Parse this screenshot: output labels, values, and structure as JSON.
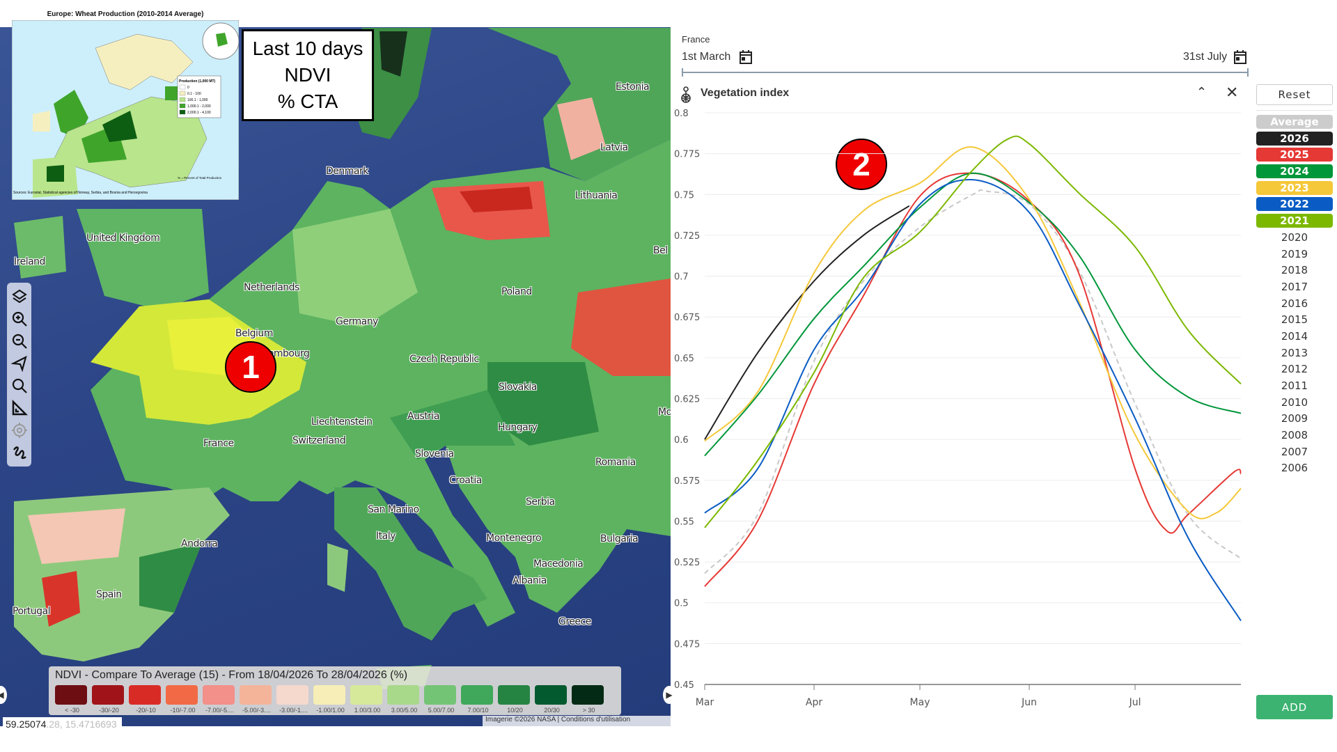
{
  "map": {
    "inset": {
      "title": "Europe: Wheat Production (2010-2014 Average)",
      "legend_title": "Production (1,000 MT)",
      "legend_items": [
        "0",
        "0.1 - 100",
        "100.1 - 1,000",
        "1,000.1 - 2,000",
        "2,000.1 - 4,100"
      ],
      "legend_colors": [
        "#ffffff",
        "#f5efc0",
        "#b9e58c",
        "#3fa52a",
        "#0d5e12"
      ],
      "source": "Sources: Eurostat, Statistical agencies of Norway, Serbia, and Bosnia and Herzegovina",
      "note": "% = Percent of Total Production"
    },
    "ndvi_box": {
      "line1": "Last 10 days",
      "line2": "NDVI",
      "line3": "% CTA"
    },
    "markers": {
      "m1": "1",
      "m2": "2"
    },
    "toolbar": [
      "layers-icon",
      "zoom-in-icon",
      "zoom-out-icon",
      "navigate-icon",
      "search-icon",
      "measure-icon",
      "locate-icon",
      "draw-icon"
    ],
    "country_labels": [
      "Estonia",
      "Latvia",
      "Lithuania",
      "Denmark",
      "United Kingdom",
      "Ireland",
      "Netherlands",
      "Poland",
      "Belgium",
      "Germany",
      "Luxembourg",
      "Czech Republic",
      "Slovakia",
      "France",
      "Austria",
      "Hungary",
      "Liechtenstein",
      "Switzerland",
      "Slovenia",
      "Romania",
      "Croatia",
      "Serbia",
      "San Marino",
      "Italy",
      "Montenegro",
      "Bulgaria",
      "Macedonia",
      "Albania",
      "Andorra",
      "Spain",
      "Portugal",
      "Greece",
      "Bel",
      "Mo"
    ],
    "legend": {
      "title": "NDVI - Compare To Average (15) - From 18/04/2026 To 28/04/2026 (%)",
      "items": [
        {
          "label": "< -30",
          "color": "#6d0e12"
        },
        {
          "label": "-30/-20",
          "color": "#a01419"
        },
        {
          "label": "-20/-10",
          "color": "#d92b26"
        },
        {
          "label": "-10/-7.00",
          "color": "#f26a45"
        },
        {
          "label": "-7.00/-5....",
          "color": "#f3908a"
        },
        {
          "label": "-5.00/-3....",
          "color": "#f4b49a"
        },
        {
          "label": "-3.00/-1....",
          "color": "#f5d9cd"
        },
        {
          "label": "-1.00/1.00",
          "color": "#f6eeb6"
        },
        {
          "label": "1.00/3.00",
          "color": "#d6e99b"
        },
        {
          "label": "3.00/5.00",
          "color": "#a8d98a"
        },
        {
          "label": "5.00/7.00",
          "color": "#74c476"
        },
        {
          "label": "7.00/10",
          "color": "#3fa85a"
        },
        {
          "label": "10/20",
          "color": "#268443"
        },
        {
          "label": "20/30",
          "color": "#045a2f"
        },
        {
          "label": "> 30",
          "color": "#022a14"
        }
      ]
    },
    "coordinate": "59.25074",
    "coordinate_ghost": ".28, 15.4716693",
    "attribution": "Imagerie ©2026 NASA",
    "terms": "Conditions d'utilisation"
  },
  "panel": {
    "region": "France",
    "start_date": "1st March",
    "end_date": "31st July",
    "chart_title": "Vegetation index",
    "reset_label": "Reset",
    "add_label": "ADD",
    "years": [
      {
        "label": "Average",
        "color": "#cccccc",
        "active": true
      },
      {
        "label": "2026",
        "color": "#222222",
        "active": true
      },
      {
        "label": "2025",
        "color": "#e53935",
        "active": true
      },
      {
        "label": "2024",
        "color": "#00963a",
        "active": true
      },
      {
        "label": "2023",
        "color": "#f5c83a",
        "active": true
      },
      {
        "label": "2022",
        "color": "#0a5cc4",
        "active": true
      },
      {
        "label": "2021",
        "color": "#7cb800",
        "active": true
      },
      {
        "label": "2020",
        "active": false
      },
      {
        "label": "2019",
        "active": false
      },
      {
        "label": "2018",
        "active": false
      },
      {
        "label": "2017",
        "active": false
      },
      {
        "label": "2016",
        "active": false
      },
      {
        "label": "2015",
        "active": false
      },
      {
        "label": "2014",
        "active": false
      },
      {
        "label": "2013",
        "active": false
      },
      {
        "label": "2012",
        "active": false
      },
      {
        "label": "2011",
        "active": false
      },
      {
        "label": "2010",
        "active": false
      },
      {
        "label": "2009",
        "active": false
      },
      {
        "label": "2008",
        "active": false
      },
      {
        "label": "2007",
        "active": false
      },
      {
        "label": "2006",
        "active": false
      }
    ],
    "add_color": "#3cb371"
  },
  "chart_data": {
    "type": "line",
    "title": "Vegetation index",
    "xlim": [
      "03-01",
      "07-31"
    ],
    "ylim": [
      0.45,
      0.8
    ],
    "yticks": [
      0.45,
      0.475,
      0.5,
      0.525,
      0.55,
      0.575,
      0.6,
      0.625,
      0.65,
      0.675,
      0.7,
      0.725,
      0.75,
      0.775,
      0.8
    ],
    "xticks": [
      {
        "date": "03-01",
        "label": "Mar"
      },
      {
        "date": "04-01",
        "label": "Apr"
      },
      {
        "date": "05-01",
        "label": "May"
      },
      {
        "date": "06-01",
        "label": "Jun"
      },
      {
        "date": "07-01",
        "label": "Jul"
      }
    ],
    "grid": true,
    "series": [
      {
        "name": "Average",
        "color": "#c8c8c8",
        "dashed": true,
        "points": [
          [
            "03-01",
            0.518
          ],
          [
            "03-16",
            0.554
          ],
          [
            "04-01",
            0.648
          ],
          [
            "04-15",
            0.697
          ],
          [
            "05-01",
            0.73
          ],
          [
            "05-16",
            0.75
          ],
          [
            "05-20",
            0.752
          ],
          [
            "06-01",
            0.744
          ],
          [
            "06-15",
            0.704
          ],
          [
            "07-01",
            0.622
          ],
          [
            "07-16",
            0.554
          ],
          [
            "07-31",
            0.527
          ]
        ]
      },
      {
        "name": "2026",
        "color": "#222222",
        "points": [
          [
            "03-01",
            0.6
          ],
          [
            "03-16",
            0.653
          ],
          [
            "04-01",
            0.697
          ],
          [
            "04-15",
            0.725
          ],
          [
            "04-28",
            0.743
          ]
        ]
      },
      {
        "name": "2025",
        "color": "#e53935",
        "points": [
          [
            "03-01",
            0.51
          ],
          [
            "03-16",
            0.55
          ],
          [
            "04-01",
            0.634
          ],
          [
            "04-15",
            0.688
          ],
          [
            "05-01",
            0.749
          ],
          [
            "05-16",
            0.763
          ],
          [
            "06-01",
            0.746
          ],
          [
            "06-15",
            0.702
          ],
          [
            "07-01",
            0.582
          ],
          [
            "07-10",
            0.544
          ],
          [
            "07-16",
            0.554
          ],
          [
            "07-29",
            0.58
          ],
          [
            "07-31",
            0.579
          ]
        ]
      },
      {
        "name": "2024",
        "color": "#00963a",
        "points": [
          [
            "03-01",
            0.59
          ],
          [
            "03-16",
            0.627
          ],
          [
            "04-01",
            0.674
          ],
          [
            "04-15",
            0.706
          ],
          [
            "05-01",
            0.742
          ],
          [
            "05-16",
            0.763
          ],
          [
            "06-01",
            0.745
          ],
          [
            "06-15",
            0.713
          ],
          [
            "07-01",
            0.655
          ],
          [
            "07-16",
            0.626
          ],
          [
            "07-31",
            0.616
          ]
        ]
      },
      {
        "name": "2023",
        "color": "#f5c83a",
        "points": [
          [
            "03-01",
            0.599
          ],
          [
            "03-16",
            0.629
          ],
          [
            "04-01",
            0.702
          ],
          [
            "04-15",
            0.74
          ],
          [
            "05-01",
            0.757
          ],
          [
            "05-16",
            0.779
          ],
          [
            "06-01",
            0.747
          ],
          [
            "06-15",
            0.685
          ],
          [
            "07-01",
            0.603
          ],
          [
            "07-16",
            0.556
          ],
          [
            "07-24",
            0.555
          ],
          [
            "07-31",
            0.57
          ]
        ]
      },
      {
        "name": "2022",
        "color": "#0a5cc4",
        "points": [
          [
            "03-01",
            0.555
          ],
          [
            "03-16",
            0.582
          ],
          [
            "04-01",
            0.655
          ],
          [
            "04-15",
            0.692
          ],
          [
            "05-01",
            0.744
          ],
          [
            "05-16",
            0.759
          ],
          [
            "06-01",
            0.739
          ],
          [
            "06-15",
            0.683
          ],
          [
            "07-01",
            0.613
          ],
          [
            "07-16",
            0.54
          ],
          [
            "07-31",
            0.489
          ]
        ]
      },
      {
        "name": "2021",
        "color": "#7cb800",
        "points": [
          [
            "03-01",
            0.546
          ],
          [
            "03-16",
            0.587
          ],
          [
            "04-01",
            0.641
          ],
          [
            "04-15",
            0.699
          ],
          [
            "05-01",
            0.727
          ],
          [
            "05-16",
            0.765
          ],
          [
            "05-26",
            0.784
          ],
          [
            "06-01",
            0.781
          ],
          [
            "06-15",
            0.751
          ],
          [
            "07-01",
            0.718
          ],
          [
            "07-16",
            0.667
          ],
          [
            "07-31",
            0.634
          ]
        ]
      }
    ]
  }
}
